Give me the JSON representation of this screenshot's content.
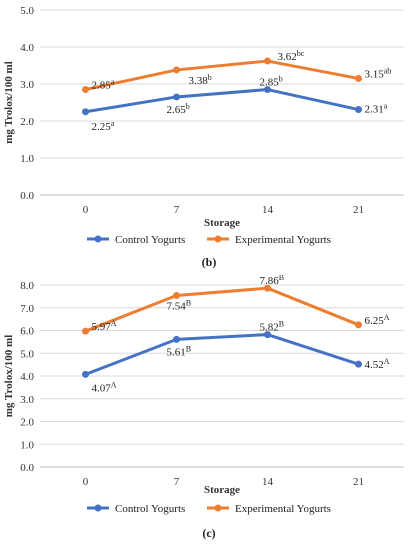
{
  "chart_data": [
    {
      "id": "b",
      "type": "line",
      "caption": "(b)",
      "xlabel": "Storage",
      "ylabel": "mg Trolox/100 ml",
      "categories": [
        "0",
        "7",
        "14",
        "21"
      ],
      "ylim": [
        0,
        5
      ],
      "yticks": [
        "0.0",
        "1.0",
        "2.0",
        "3.0",
        "4.0",
        "5.0"
      ],
      "grid": true,
      "legend": "bottom",
      "series": [
        {
          "name": "Control Yogurts",
          "color": "#4472C4",
          "values": [
            2.25,
            2.65,
            2.85,
            2.31
          ],
          "labels": [
            "2.25",
            "2.65",
            "2.85",
            "2.31"
          ],
          "sups": [
            "a",
            "b",
            "b",
            "a"
          ]
        },
        {
          "name": "Experimental Yogurts",
          "color": "#ED7D31",
          "values": [
            2.85,
            3.38,
            3.62,
            3.15
          ],
          "labels": [
            "2.85",
            "3.38",
            "3.62",
            "3.15"
          ],
          "sups": [
            "a",
            "b",
            "bc",
            "ab"
          ]
        }
      ]
    },
    {
      "id": "c",
      "type": "line",
      "caption": "(c)",
      "xlabel": "Storage",
      "ylabel": "mg Trolox/100 ml",
      "categories": [
        "0",
        "7",
        "14",
        "21"
      ],
      "ylim": [
        0,
        8
      ],
      "yticks": [
        "0.0",
        "1.0",
        "2.0",
        "3.0",
        "4.0",
        "5.0",
        "6.0",
        "7.0",
        "8.0"
      ],
      "grid": true,
      "legend": "bottom",
      "series": [
        {
          "name": "Control Yogurts",
          "color": "#4472C4",
          "values": [
            4.07,
            5.61,
            5.82,
            4.52
          ],
          "labels": [
            "4.07",
            "5.61",
            "5.82",
            "4.52"
          ],
          "sups": [
            "A",
            "B",
            "B",
            "A"
          ]
        },
        {
          "name": "Experimental Yogurts",
          "color": "#ED7D31",
          "values": [
            5.97,
            7.54,
            7.86,
            6.25
          ],
          "labels": [
            "5.97",
            "7.54",
            "7.86",
            "6.25"
          ],
          "sups": [
            "A",
            "B",
            "B",
            "A"
          ]
        }
      ]
    }
  ]
}
